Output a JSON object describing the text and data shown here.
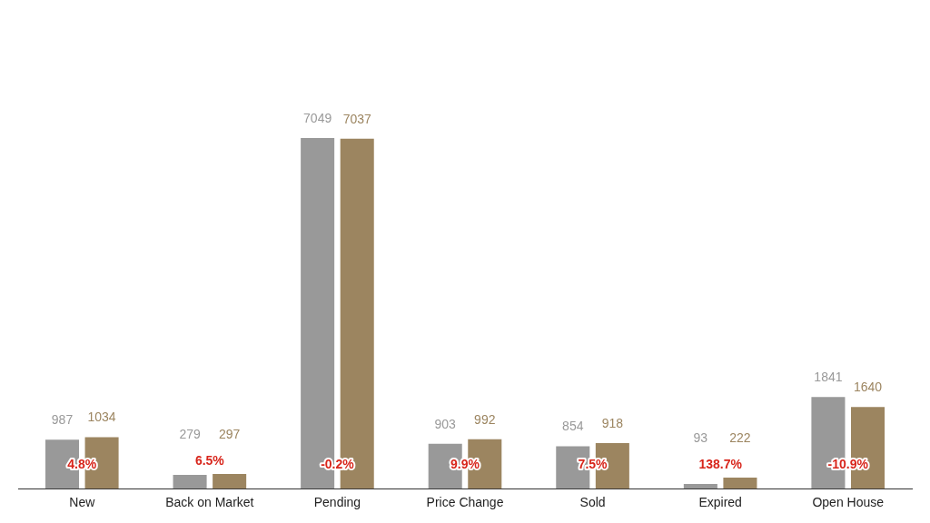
{
  "chart_data": {
    "type": "bar",
    "categories": [
      "New",
      "Back on Market",
      "Pending",
      "Price Change",
      "Sold",
      "Expired",
      "Open House"
    ],
    "series": [
      {
        "color": "#999999",
        "values": [
          987,
          279,
          7049,
          903,
          854,
          93,
          1841
        ]
      },
      {
        "color": "#9c8560",
        "values": [
          1034,
          297,
          7037,
          992,
          918,
          222,
          1640
        ]
      }
    ],
    "data_labels": true,
    "grid": false,
    "legend": false,
    "tick_labels": "x",
    "annotations": [
      "4.8%",
      "6.5%",
      "-0.2%",
      "9.9%",
      "7.5%",
      "138.7%",
      "-10.9%"
    ]
  }
}
